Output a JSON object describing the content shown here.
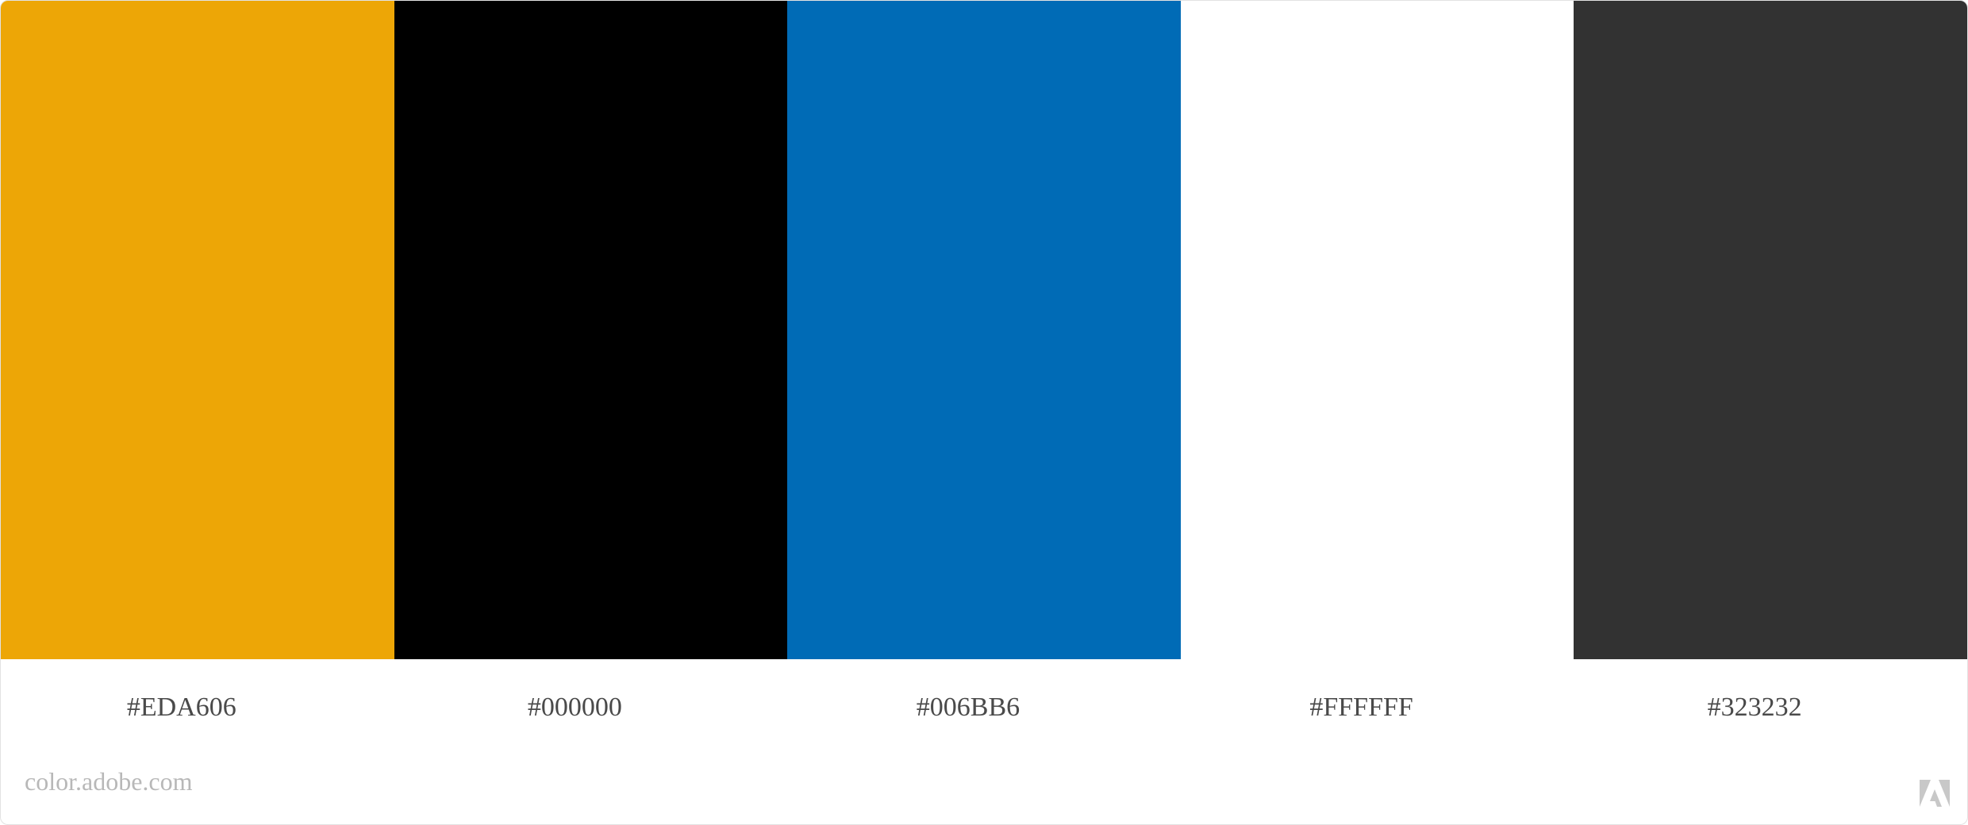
{
  "palette": {
    "swatches": [
      {
        "hex_label": "#EDA606",
        "color": "#EDA606"
      },
      {
        "hex_label": "#000000",
        "color": "#000000"
      },
      {
        "hex_label": "#006BB6",
        "color": "#006BB6"
      },
      {
        "hex_label": "#FFFFFF",
        "color": "#FFFFFF"
      },
      {
        "hex_label": "#323232",
        "color": "#323232"
      }
    ]
  },
  "footer": {
    "domain": "color.adobe.com",
    "logo_icon": "adobe-logo-icon",
    "logo_color": "#C8C8C8"
  }
}
